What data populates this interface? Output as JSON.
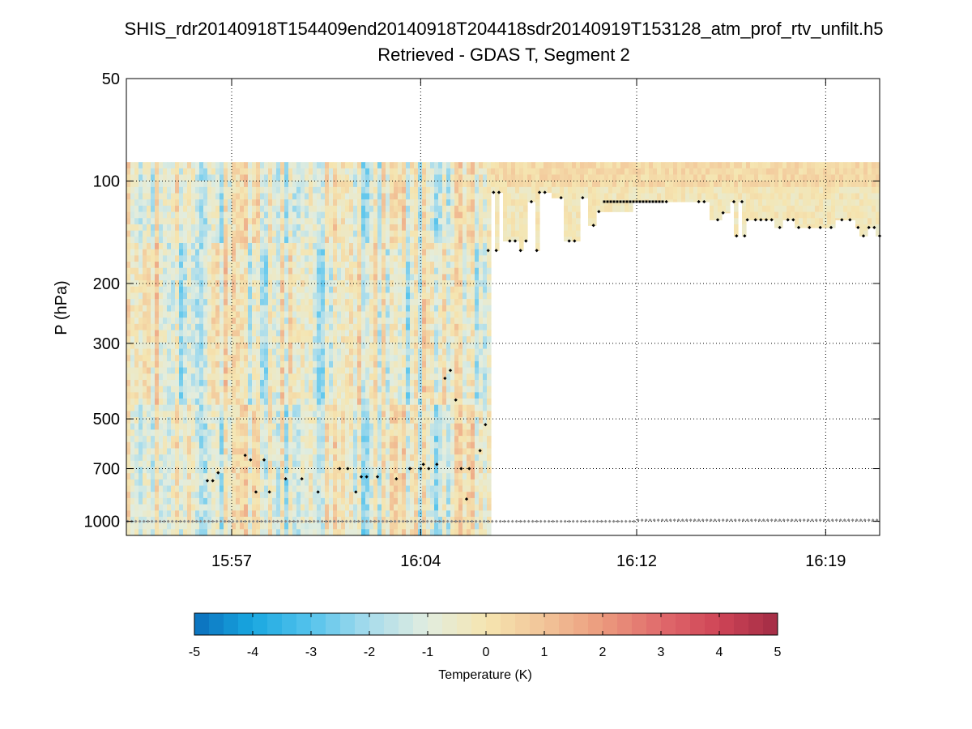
{
  "chart_data": {
    "type": "heatmap",
    "title": "SHIS_rdr20140918T154409end20140918T204418sdr20140919T153128_atm_prof_rtv_unfilt.h5",
    "subtitle": "Retrieved - GDAS T, Segment 2",
    "ylabel": "P (hPa)",
    "y_scale": "log",
    "y_reversed": true,
    "ylim": [
      50,
      1100
    ],
    "y_ticks": [
      50,
      100,
      200,
      300,
      500,
      700,
      1000
    ],
    "y_tick_labels": [
      "50",
      "100",
      "200",
      "300",
      "500",
      "700",
      "1000"
    ],
    "xlim_minutes": [
      953.1,
      981.0
    ],
    "x_ticks_minutes": [
      957,
      964,
      972,
      979
    ],
    "x_tick_labels": [
      "15:57",
      "16:04",
      "16:12",
      "16:19"
    ],
    "grid": true,
    "colorbar": {
      "label": "Temperature (K)",
      "range": [
        -5,
        5
      ],
      "ticks": [
        -5,
        -4,
        -3,
        -2,
        -1,
        0,
        1,
        2,
        3,
        4,
        5
      ],
      "tick_labels": [
        "-5",
        "-4",
        "-3",
        "-2",
        "-1",
        "0",
        "1",
        "2",
        "3",
        "4",
        "5"
      ],
      "colors": [
        "#0a6fbd",
        "#19a8e0",
        "#55c3ec",
        "#a8dcec",
        "#e2eddf",
        "#f5e5b0",
        "#f2c498",
        "#eb9a7d",
        "#e06a6c",
        "#cf4456",
        "#a22c45"
      ]
    },
    "data_top_pressure": 88,
    "cloud_top_markers": [
      {
        "t": 956.1,
        "p": 760
      },
      {
        "t": 956.3,
        "p": 760
      },
      {
        "t": 956.5,
        "p": 720
      },
      {
        "t": 957.5,
        "p": 640
      },
      {
        "t": 957.7,
        "p": 660
      },
      {
        "t": 957.9,
        "p": 820
      },
      {
        "t": 958.2,
        "p": 660
      },
      {
        "t": 958.4,
        "p": 820
      },
      {
        "t": 959.0,
        "p": 750
      },
      {
        "t": 959.6,
        "p": 750
      },
      {
        "t": 960.2,
        "p": 820
      },
      {
        "t": 961.0,
        "p": 700
      },
      {
        "t": 961.3,
        "p": 700
      },
      {
        "t": 961.6,
        "p": 820
      },
      {
        "t": 961.8,
        "p": 740
      },
      {
        "t": 962.0,
        "p": 740
      },
      {
        "t": 962.4,
        "p": 740
      },
      {
        "t": 963.1,
        "p": 750
      },
      {
        "t": 963.6,
        "p": 700
      },
      {
        "t": 964.0,
        "p": 700
      },
      {
        "t": 964.1,
        "p": 680
      },
      {
        "t": 964.3,
        "p": 700
      },
      {
        "t": 964.6,
        "p": 680
      },
      {
        "t": 964.9,
        "p": 380
      },
      {
        "t": 965.1,
        "p": 360
      },
      {
        "t": 965.3,
        "p": 440
      },
      {
        "t": 965.5,
        "p": 700
      },
      {
        "t": 965.8,
        "p": 700
      },
      {
        "t": 965.7,
        "p": 860
      },
      {
        "t": 966.2,
        "p": 620
      },
      {
        "t": 966.4,
        "p": 520
      },
      {
        "t": 966.5,
        "p": 160
      },
      {
        "t": 966.8,
        "p": 160
      },
      {
        "t": 966.7,
        "p": 108
      },
      {
        "t": 966.9,
        "p": 108
      },
      {
        "t": 967.3,
        "p": 150
      },
      {
        "t": 967.5,
        "p": 150
      },
      {
        "t": 967.7,
        "p": 160
      },
      {
        "t": 967.9,
        "p": 150
      },
      {
        "t": 968.1,
        "p": 115
      },
      {
        "t": 968.3,
        "p": 160
      },
      {
        "t": 968.4,
        "p": 108
      },
      {
        "t": 968.6,
        "p": 108
      },
      {
        "t": 969.2,
        "p": 112
      },
      {
        "t": 969.5,
        "p": 150
      },
      {
        "t": 969.7,
        "p": 150
      },
      {
        "t": 970.0,
        "p": 112
      },
      {
        "t": 970.4,
        "p": 135
      },
      {
        "t": 970.6,
        "p": 123
      },
      {
        "t": 973.1,
        "p": 115
      },
      {
        "t": 974.3,
        "p": 115
      },
      {
        "t": 974.5,
        "p": 115
      },
      {
        "t": 975.0,
        "p": 130
      },
      {
        "t": 975.2,
        "p": 124
      },
      {
        "t": 975.6,
        "p": 115
      },
      {
        "t": 975.9,
        "p": 115
      },
      {
        "t": 976.1,
        "p": 130
      },
      {
        "t": 976.4,
        "p": 130
      },
      {
        "t": 976.6,
        "p": 130
      },
      {
        "t": 976.8,
        "p": 130
      },
      {
        "t": 977.0,
        "p": 130
      },
      {
        "t": 977.3,
        "p": 137
      },
      {
        "t": 977.6,
        "p": 130
      },
      {
        "t": 977.8,
        "p": 130
      },
      {
        "t": 978.0,
        "p": 137
      },
      {
        "t": 978.4,
        "p": 137
      },
      {
        "t": 978.8,
        "p": 137
      },
      {
        "t": 979.2,
        "p": 137
      },
      {
        "t": 979.6,
        "p": 130
      },
      {
        "t": 979.9,
        "p": 130
      },
      {
        "t": 980.2,
        "p": 137
      },
      {
        "t": 980.4,
        "p": 145
      },
      {
        "t": 980.6,
        "p": 137
      },
      {
        "t": 980.8,
        "p": 137
      },
      {
        "t": 981.0,
        "p": 145
      },
      {
        "t": 975.7,
        "p": 145
      },
      {
        "t": 976.0,
        "p": 145
      }
    ]
  }
}
